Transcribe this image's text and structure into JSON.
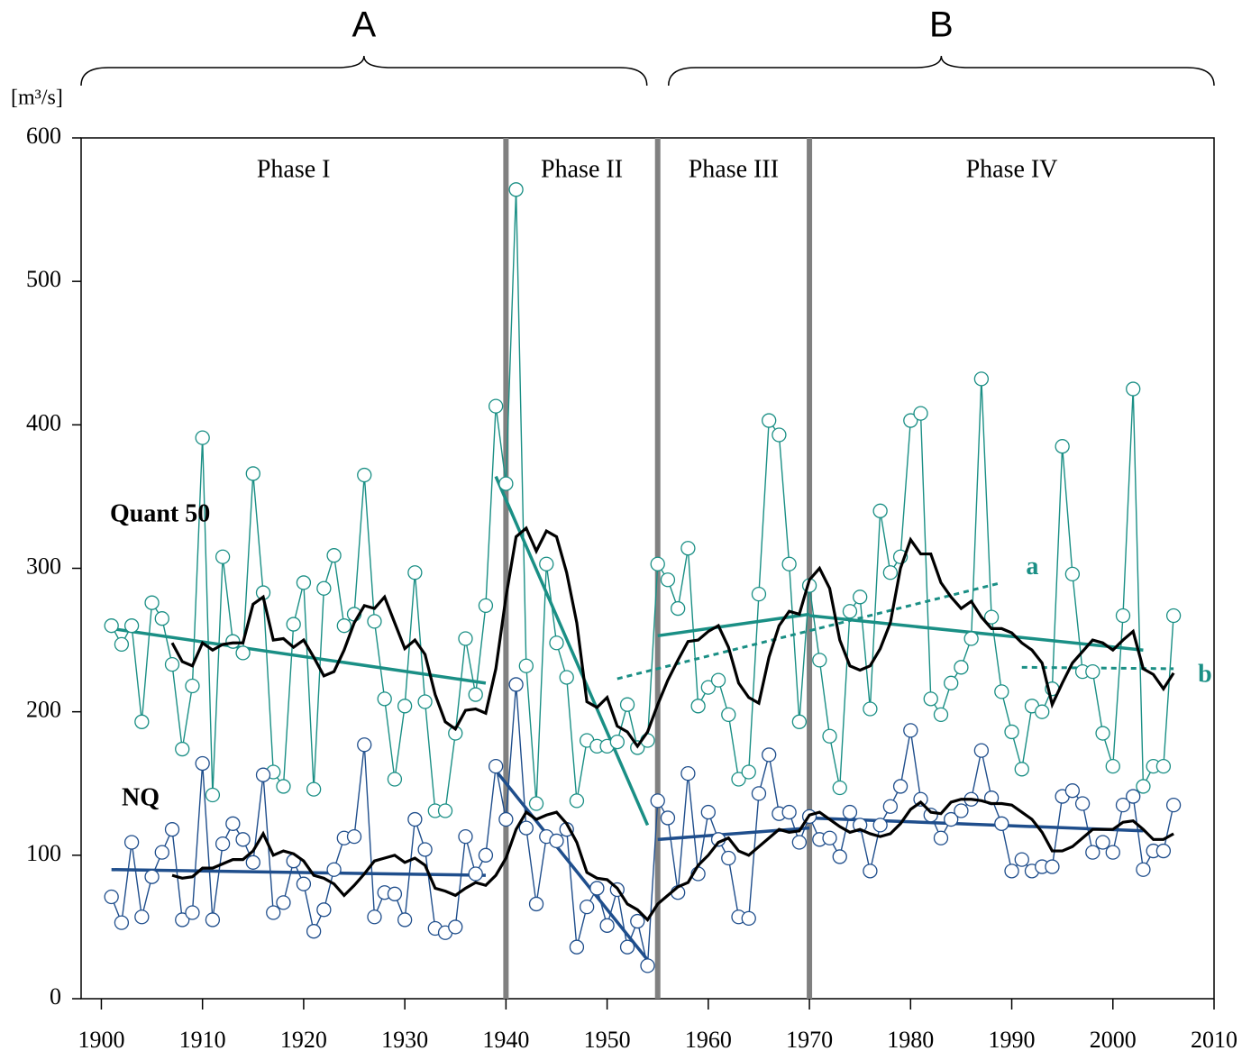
{
  "chart_data": {
    "type": "line",
    "y_label": "[m³/s]",
    "xlim": [
      1898,
      2010
    ],
    "ylim": [
      0,
      600
    ],
    "xticks": [
      1900,
      1910,
      1920,
      1930,
      1940,
      1950,
      1960,
      1970,
      1980,
      1990,
      2000,
      2010
    ],
    "yticks": [
      0,
      100,
      200,
      300,
      400,
      500,
      600
    ],
    "dividers": [
      1940,
      1955,
      1970
    ],
    "divider_color": "#808080",
    "phases": [
      "Phase I",
      "Phase II",
      "Phase III",
      "Phase IV"
    ],
    "periods": [
      "A",
      "B"
    ],
    "series": [
      {
        "name": "Quant 50",
        "color": "#1a8f85",
        "marker": "circle",
        "x": [
          1901,
          1902,
          1903,
          1904,
          1905,
          1906,
          1907,
          1908,
          1909,
          1910,
          1911,
          1912,
          1913,
          1914,
          1915,
          1916,
          1917,
          1918,
          1919,
          1920,
          1921,
          1922,
          1923,
          1924,
          1925,
          1926,
          1927,
          1928,
          1929,
          1930,
          1931,
          1932,
          1933,
          1934,
          1935,
          1936,
          1937,
          1938,
          1939,
          1940,
          1941,
          1942,
          1943,
          1944,
          1945,
          1946,
          1947,
          1948,
          1949,
          1950,
          1951,
          1952,
          1953,
          1954,
          1955,
          1956,
          1957,
          1958,
          1959,
          1960,
          1961,
          1962,
          1963,
          1964,
          1965,
          1966,
          1967,
          1968,
          1969,
          1970,
          1971,
          1972,
          1973,
          1974,
          1975,
          1976,
          1977,
          1978,
          1979,
          1980,
          1981,
          1982,
          1983,
          1984,
          1985,
          1986,
          1987,
          1988,
          1989,
          1990,
          1991,
          1992,
          1993,
          1994,
          1995,
          1996,
          1997,
          1998,
          1999,
          2000,
          2001,
          2002,
          2003,
          2004,
          2005,
          2006
        ],
        "values": [
          260,
          247,
          260,
          193,
          276,
          265,
          233,
          174,
          218,
          391,
          142,
          308,
          249,
          241,
          366,
          283,
          158,
          148,
          261,
          290,
          146,
          286,
          309,
          260,
          268,
          365,
          263,
          209,
          153,
          204,
          297,
          207,
          131,
          131,
          185,
          251,
          212,
          274,
          413,
          359,
          564,
          232,
          136,
          303,
          248,
          224,
          138,
          180,
          176,
          176,
          179,
          205,
          175,
          180,
          303,
          292,
          272,
          314,
          204,
          217,
          222,
          198,
          153,
          158,
          282,
          403,
          393,
          303,
          193,
          288,
          236,
          183,
          147,
          270,
          280,
          202,
          340,
          297,
          308,
          403,
          408,
          209,
          198,
          220,
          231,
          251,
          432,
          266,
          214,
          186,
          160,
          204,
          200,
          216,
          385,
          296,
          228,
          228,
          185,
          162,
          267,
          425,
          148,
          162,
          162,
          267
        ]
      },
      {
        "name": "NQ",
        "color": "#1f4e8c",
        "marker": "circle",
        "x": [
          1901,
          1902,
          1903,
          1904,
          1905,
          1906,
          1907,
          1908,
          1909,
          1910,
          1911,
          1912,
          1913,
          1914,
          1915,
          1916,
          1917,
          1918,
          1919,
          1920,
          1921,
          1922,
          1923,
          1924,
          1925,
          1926,
          1927,
          1928,
          1929,
          1930,
          1931,
          1932,
          1933,
          1934,
          1935,
          1936,
          1937,
          1938,
          1939,
          1940,
          1941,
          1942,
          1943,
          1944,
          1945,
          1946,
          1947,
          1948,
          1949,
          1950,
          1951,
          1952,
          1953,
          1954,
          1955,
          1956,
          1957,
          1958,
          1959,
          1960,
          1961,
          1962,
          1963,
          1964,
          1965,
          1966,
          1967,
          1968,
          1969,
          1970,
          1971,
          1972,
          1973,
          1974,
          1975,
          1976,
          1977,
          1978,
          1979,
          1980,
          1981,
          1982,
          1983,
          1984,
          1985,
          1986,
          1987,
          1988,
          1989,
          1990,
          1991,
          1992,
          1993,
          1994,
          1995,
          1996,
          1997,
          1998,
          1999,
          2000,
          2001,
          2002,
          2003,
          2004,
          2005,
          2006
        ],
        "values": [
          71,
          53,
          109,
          57,
          85,
          102,
          118,
          55,
          60,
          164,
          55,
          108,
          122,
          111,
          95,
          156,
          60,
          67,
          96,
          80,
          47,
          62,
          90,
          112,
          113,
          177,
          57,
          74,
          73,
          55,
          125,
          104,
          49,
          46,
          50,
          113,
          87,
          100,
          162,
          125,
          219,
          119,
          66,
          113,
          110,
          118,
          36,
          64,
          77,
          51,
          76,
          36,
          54,
          23,
          138,
          126,
          74,
          157,
          87,
          130,
          111,
          98,
          57,
          56,
          143,
          170,
          129,
          130,
          109,
          127,
          111,
          112,
          99,
          130,
          121,
          89,
          121,
          134,
          148,
          187,
          139,
          128,
          112,
          125,
          131,
          139,
          173,
          140,
          122,
          89,
          97,
          89,
          92,
          92,
          141,
          145,
          136,
          102,
          109,
          102,
          135,
          141,
          90,
          103,
          103,
          135
        ]
      },
      {
        "color": "#000000",
        "marker": "none",
        "x": [
          1907,
          1908,
          1909,
          1910,
          1911,
          1912,
          1913,
          1914,
          1915,
          1916,
          1917,
          1918,
          1919,
          1920,
          1921,
          1922,
          1923,
          1924,
          1925,
          1926,
          1927,
          1928,
          1929,
          1930,
          1931,
          1932,
          1933,
          1934,
          1935,
          1936,
          1937,
          1938,
          1939,
          1940,
          1941,
          1942,
          1943,
          1944,
          1945,
          1946,
          1947,
          1948,
          1949,
          1950,
          1951,
          1952,
          1953,
          1954,
          1955,
          1956,
          1957,
          1958,
          1959,
          1960,
          1961,
          1962,
          1963,
          1964,
          1965,
          1966,
          1967,
          1968,
          1969,
          1970,
          1971,
          1972,
          1973,
          1974,
          1975,
          1976,
          1977,
          1978,
          1979,
          1980,
          1981,
          1982,
          1983,
          1984,
          1985,
          1986,
          1987,
          1988,
          1989,
          1990,
          1991,
          1992,
          1993,
          1994,
          1995,
          1996,
          1997,
          1998,
          1999,
          2000,
          2001,
          2002,
          2003,
          2004,
          2005,
          2006
        ],
        "values": [
          248,
          235,
          232,
          248,
          243,
          247,
          248,
          248,
          275,
          280,
          250,
          251,
          245,
          250,
          238,
          225,
          228,
          243,
          262,
          274,
          272,
          280,
          262,
          244,
          250,
          240,
          212,
          193,
          188,
          201,
          202,
          199,
          230,
          280,
          322,
          328,
          312,
          326,
          322,
          297,
          262,
          207,
          203,
          210,
          190,
          186,
          176,
          186,
          205,
          222,
          236,
          249,
          250,
          256,
          260,
          245,
          220,
          210,
          206,
          238,
          260,
          270,
          268,
          292,
          300,
          286,
          250,
          232,
          229,
          232,
          244,
          262,
          300,
          320,
          310,
          310,
          290,
          280,
          272,
          277,
          266,
          258,
          258,
          255,
          248,
          243,
          234,
          205,
          220,
          234,
          242,
          250,
          248,
          243,
          250,
          256,
          230,
          226,
          216,
          227
        ]
      },
      {
        "color": "#000000",
        "marker": "none",
        "x": [
          1907,
          1908,
          1909,
          1910,
          1911,
          1912,
          1913,
          1914,
          1915,
          1916,
          1917,
          1918,
          1919,
          1920,
          1921,
          1922,
          1923,
          1924,
          1925,
          1926,
          1927,
          1928,
          1929,
          1930,
          1931,
          1932,
          1933,
          1934,
          1935,
          1936,
          1937,
          1938,
          1939,
          1940,
          1941,
          1942,
          1943,
          1944,
          1945,
          1946,
          1947,
          1948,
          1949,
          1950,
          1951,
          1952,
          1953,
          1954,
          1955,
          1956,
          1957,
          1958,
          1959,
          1960,
          1961,
          1962,
          1963,
          1964,
          1965,
          1966,
          1967,
          1968,
          1969,
          1970,
          1971,
          1972,
          1973,
          1974,
          1975,
          1976,
          1977,
          1978,
          1979,
          1980,
          1981,
          1982,
          1983,
          1984,
          1985,
          1986,
          1987,
          1988,
          1989,
          1990,
          1991,
          1992,
          1993,
          1994,
          1995,
          1996,
          1997,
          1998,
          1999,
          2000,
          2001,
          2002,
          2003,
          2004,
          2005,
          2006
        ],
        "values": [
          86,
          84,
          85,
          91,
          91,
          94,
          97,
          97,
          103,
          115,
          100,
          103,
          101,
          96,
          86,
          84,
          80,
          72,
          79,
          87,
          96,
          98,
          100,
          95,
          98,
          93,
          77,
          75,
          72,
          77,
          81,
          79,
          86,
          98,
          118,
          130,
          125,
          128,
          130,
          122,
          109,
          88,
          84,
          83,
          77,
          66,
          62,
          55,
          66,
          72,
          78,
          81,
          93,
          100,
          109,
          112,
          103,
          100,
          106,
          112,
          118,
          116,
          117,
          128,
          130,
          125,
          120,
          116,
          118,
          115,
          113,
          115,
          122,
          132,
          137,
          130,
          129,
          137,
          139,
          139,
          138,
          136,
          136,
          135,
          130,
          125,
          116,
          103,
          103,
          106,
          112,
          118,
          118,
          118,
          123,
          124,
          118,
          111,
          111,
          115
        ]
      }
    ],
    "trends": [
      {
        "color": "#1a8f85",
        "x": [
          1901,
          1938
        ],
        "values": [
          258,
          220
        ]
      },
      {
        "color": "#1a8f85",
        "x": [
          1939,
          1954
        ],
        "values": [
          364,
          121
        ]
      },
      {
        "color": "#1a8f85",
        "x": [
          1955,
          1970
        ],
        "values": [
          253,
          268
        ]
      },
      {
        "color": "#1a8f85",
        "x": [
          1970,
          2003
        ],
        "values": [
          267,
          243
        ]
      },
      {
        "name": "a",
        "color": "#1a8f85",
        "dashed": true,
        "x": [
          1951,
          1989
        ],
        "values": [
          223,
          290
        ]
      },
      {
        "name": "b",
        "color": "#1a8f85",
        "dashed": true,
        "x": [
          1991,
          2006
        ],
        "values": [
          231,
          230
        ]
      },
      {
        "color": "#1f4e8c",
        "x": [
          1901,
          1938
        ],
        "values": [
          90,
          86
        ]
      },
      {
        "color": "#1f4e8c",
        "x": [
          1939,
          1954
        ],
        "values": [
          159,
          27
        ]
      },
      {
        "color": "#1f4e8c",
        "x": [
          1955,
          1970
        ],
        "values": [
          111,
          119
        ]
      },
      {
        "color": "#1f4e8c",
        "x": [
          1970,
          2003
        ],
        "values": [
          126,
          117
        ]
      }
    ]
  }
}
